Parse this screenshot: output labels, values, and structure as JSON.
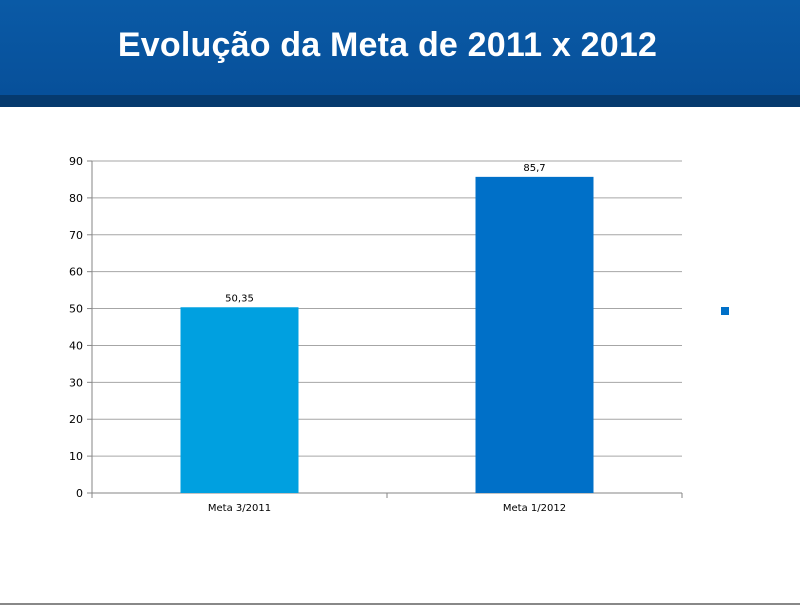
{
  "slide": {
    "title": "Evolução da Meta de 2011 x 2012"
  },
  "colors": {
    "header": "#07509a",
    "header_band": "#063a6e",
    "grid": "#a6a6a6",
    "axis": "#868686"
  },
  "chart_data": {
    "type": "bar",
    "title": "",
    "xlabel": "",
    "ylabel": "",
    "categories": [
      "Meta 3/2011",
      "Meta 1/2012"
    ],
    "values": [
      50.35,
      85.7
    ],
    "value_labels": [
      "50,35",
      "85,7"
    ],
    "bar_colors": [
      "#00a0e0",
      "#0070c8"
    ],
    "ylim": [
      0,
      90
    ],
    "yticks": [
      0,
      10,
      20,
      30,
      40,
      50,
      60,
      70,
      80,
      90
    ],
    "grid": true,
    "legend": {
      "placement": "right",
      "marker_color": "#0070c8",
      "label": ""
    }
  }
}
